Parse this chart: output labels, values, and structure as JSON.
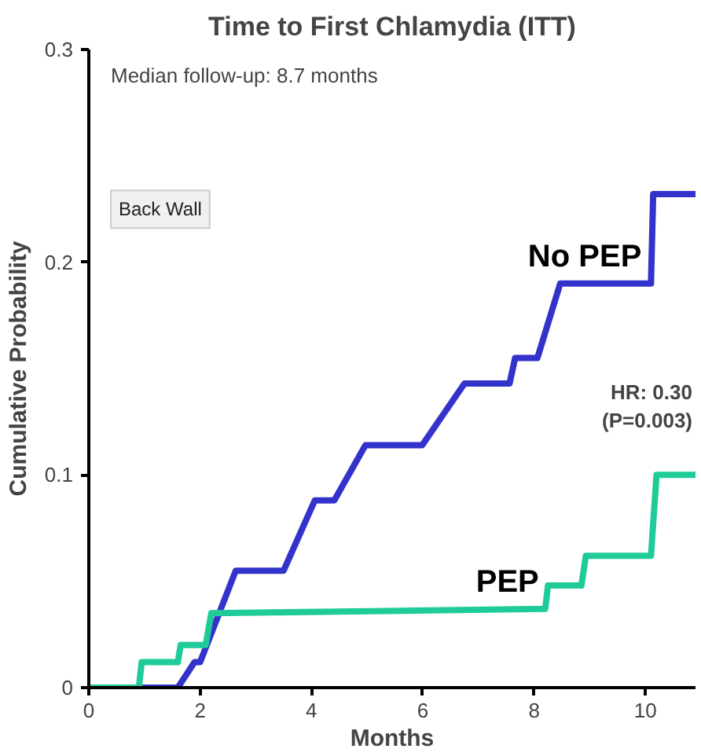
{
  "chart_data": {
    "type": "line",
    "title": "Time to First Chlamydia (ITT)",
    "xlabel": "Months",
    "ylabel": "Cumulative Probability",
    "annotations": [
      "Median follow-up: 8.7 months",
      "Back Wall",
      "HR: 0.30\n(P=0.003)"
    ],
    "series": [
      {
        "name": "No PEP",
        "color": "#3333cc",
        "x": [
          0,
          1.6,
          1.9,
          2.0,
          2.64,
          3.5,
          4.06,
          4.41,
          4.97,
          5.99,
          6.75,
          7.56,
          7.66,
          8.06,
          8.47,
          10.1,
          10.14,
          10.9
        ],
        "values": [
          0,
          0,
          0.012,
          0.012,
          0.055,
          0.055,
          0.088,
          0.088,
          0.114,
          0.114,
          0.143,
          0.143,
          0.155,
          0.155,
          0.19,
          0.19,
          0.232,
          0.232
        ]
      },
      {
        "name": "PEP",
        "color": "#1fcc99",
        "x": [
          0,
          0.9,
          0.95,
          1.6,
          1.65,
          2.1,
          2.2,
          8.2,
          8.25,
          8.85,
          8.93,
          10.1,
          10.2,
          10.9
        ],
        "values": [
          0,
          0,
          0.012,
          0.012,
          0.02,
          0.02,
          0.035,
          0.037,
          0.048,
          0.048,
          0.062,
          0.062,
          0.1,
          0.1
        ]
      }
    ],
    "xlim": [
      0,
      10.9
    ],
    "ylim": [
      0,
      0.3
    ],
    "xticks": [
      0,
      2,
      4,
      6,
      8,
      10
    ],
    "yticks": [
      {
        "value": 0,
        "label": "0"
      },
      0.1,
      0.2,
      0.3
    ],
    "grid": false,
    "marker": "none",
    "line_style": "solid"
  }
}
